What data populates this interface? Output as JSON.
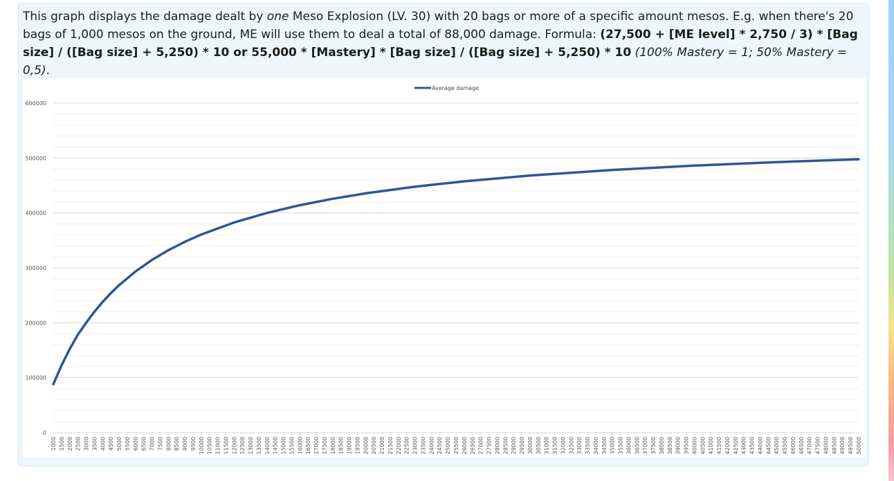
{
  "description": {
    "p1": "This graph displays the damage dealt by ",
    "em1": "one",
    "p2": " Meso Explosion (LV. 30) with 20 bags or more of a specific amount mesos. E.g. when there's 20 bags of 1,000 mesos on the ground, ME will use them to deal a total of 88,000 damage. Formula: ",
    "formula": "(27,500 + [ME level] * 2,750 / 3) * [Bag size] / ([Bag size] + 5,250) * 10 or 55,000 * [Mastery] * [Bag size] / ([Bag size] + 5,250) * 10",
    "note": " (100% Mastery = 1; 50% Mastery = 0,5)",
    "end": "."
  },
  "colors": {
    "line": "#2f5597",
    "grid": "#d9d9d9",
    "box_bg": "#eef6fc"
  },
  "chart_data": {
    "type": "line",
    "title": "",
    "xlabel": "",
    "ylabel": "",
    "legend": {
      "position": "top-center",
      "entries": [
        "Average damage"
      ]
    },
    "ylim": [
      0,
      600000
    ],
    "yticks": [
      0,
      100000,
      200000,
      300000,
      400000,
      500000,
      600000
    ],
    "x_range": [
      1000,
      50000
    ],
    "x_step": 500,
    "grid": true,
    "series": [
      {
        "name": "Average damage",
        "x": [
          1000,
          1500,
          2000,
          2500,
          3000,
          3500,
          4000,
          4500,
          5000,
          6000,
          7000,
          8000,
          9000,
          10000,
          12000,
          14000,
          16000,
          18000,
          20000,
          23000,
          26000,
          30000,
          35000,
          40000,
          45000,
          50000
        ],
        "values": [
          88000,
          122222,
          152174,
          178571,
          200000,
          220000,
          237838,
          253846,
          268293,
          293333,
          314286,
          332075,
          347368,
          360656,
          382609,
          400000,
          414118,
          425806,
          435644,
          447788,
          457600,
          468085,
          478261,
          486188,
          492537,
          497738
        ]
      }
    ]
  }
}
